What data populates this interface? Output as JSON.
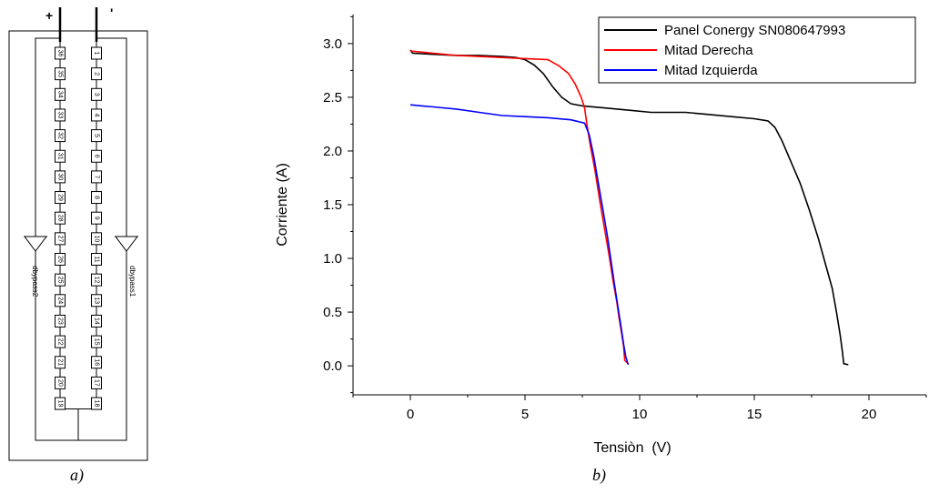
{
  "figure_a": {
    "terminal_plus": "+",
    "terminal_minus": "'",
    "left_cells": [
      "36",
      "35",
      "34",
      "33",
      "32",
      "31",
      "30",
      "29",
      "28",
      "27",
      "26",
      "25",
      "24",
      "23",
      "22",
      "21",
      "20",
      "19"
    ],
    "right_cells": [
      "1",
      "2",
      "3",
      "4",
      "5",
      "6",
      "7",
      "8",
      "9",
      "10",
      "11",
      "12",
      "13",
      "14",
      "15",
      "16",
      "17",
      "18"
    ],
    "diode_left_label": "dbypass2",
    "diode_right_label": "dbypass1",
    "caption": "a)"
  },
  "figure_b": {
    "caption": "b)"
  },
  "chart_data": {
    "type": "line",
    "xlabel": "Tensiòn  (V)",
    "ylabel": "Corriente (A)",
    "xlim": [
      -2.5,
      22.5
    ],
    "ylim": [
      -0.27,
      3.27
    ],
    "xticks": [
      0,
      5,
      10,
      15,
      20
    ],
    "yticks": [
      0.0,
      0.5,
      1.0,
      1.5,
      2.0,
      2.5,
      3.0
    ],
    "xtick_labels": [
      "0",
      "5",
      "10",
      "15",
      "20"
    ],
    "ytick_labels": [
      "0.0",
      "0.5",
      "1.0",
      "1.5",
      "2.0",
      "2.5",
      "3.0"
    ],
    "grid": false,
    "legend_position": "top-right",
    "series": [
      {
        "name": "Panel Conergy SN080647993",
        "color": "#000000",
        "points": [
          [
            0.0,
            2.94
          ],
          [
            0.1,
            2.91
          ],
          [
            1.0,
            2.9
          ],
          [
            2.0,
            2.89
          ],
          [
            3.0,
            2.89
          ],
          [
            4.0,
            2.88
          ],
          [
            4.6,
            2.87
          ],
          [
            5.0,
            2.85
          ],
          [
            5.4,
            2.8
          ],
          [
            5.8,
            2.72
          ],
          [
            6.2,
            2.6
          ],
          [
            6.6,
            2.5
          ],
          [
            7.0,
            2.44
          ],
          [
            7.5,
            2.42
          ],
          [
            8.5,
            2.4
          ],
          [
            9.5,
            2.38
          ],
          [
            10.5,
            2.36
          ],
          [
            12.0,
            2.36
          ],
          [
            13.0,
            2.34
          ],
          [
            14.0,
            2.32
          ],
          [
            15.0,
            2.3
          ],
          [
            15.6,
            2.28
          ],
          [
            15.9,
            2.22
          ],
          [
            16.2,
            2.1
          ],
          [
            16.6,
            1.9
          ],
          [
            17.0,
            1.7
          ],
          [
            17.4,
            1.45
          ],
          [
            17.8,
            1.18
          ],
          [
            18.1,
            0.95
          ],
          [
            18.4,
            0.72
          ],
          [
            18.6,
            0.48
          ],
          [
            18.75,
            0.28
          ],
          [
            18.85,
            0.12
          ],
          [
            18.9,
            0.02
          ],
          [
            19.1,
            0.01
          ]
        ]
      },
      {
        "name": "Mitad Derecha",
        "color": "#ff0000",
        "points": [
          [
            0.0,
            2.93
          ],
          [
            1.0,
            2.91
          ],
          [
            2.0,
            2.89
          ],
          [
            3.0,
            2.88
          ],
          [
            4.0,
            2.87
          ],
          [
            5.0,
            2.86
          ],
          [
            6.0,
            2.85
          ],
          [
            6.5,
            2.79
          ],
          [
            6.9,
            2.72
          ],
          [
            7.2,
            2.62
          ],
          [
            7.45,
            2.5
          ],
          [
            7.6,
            2.4
          ],
          [
            7.7,
            2.25
          ],
          [
            7.85,
            2.05
          ],
          [
            8.05,
            1.82
          ],
          [
            8.25,
            1.55
          ],
          [
            8.45,
            1.3
          ],
          [
            8.65,
            1.05
          ],
          [
            8.85,
            0.78
          ],
          [
            9.0,
            0.6
          ],
          [
            9.1,
            0.45
          ],
          [
            9.2,
            0.32
          ],
          [
            9.3,
            0.18
          ],
          [
            9.35,
            0.05
          ],
          [
            9.5,
            0.02
          ]
        ]
      },
      {
        "name": "Mitad Izquierda",
        "color": "#0000ff",
        "points": [
          [
            0.0,
            2.43
          ],
          [
            0.5,
            2.42
          ],
          [
            1.0,
            2.41
          ],
          [
            2.0,
            2.39
          ],
          [
            3.0,
            2.36
          ],
          [
            4.0,
            2.33
          ],
          [
            5.0,
            2.32
          ],
          [
            6.0,
            2.31
          ],
          [
            7.0,
            2.29
          ],
          [
            7.6,
            2.26
          ],
          [
            7.8,
            2.15
          ],
          [
            8.0,
            1.95
          ],
          [
            8.2,
            1.7
          ],
          [
            8.4,
            1.45
          ],
          [
            8.6,
            1.2
          ],
          [
            8.75,
            0.98
          ],
          [
            8.9,
            0.76
          ],
          [
            9.05,
            0.55
          ],
          [
            9.2,
            0.35
          ],
          [
            9.3,
            0.2
          ],
          [
            9.4,
            0.08
          ],
          [
            9.5,
            0.01
          ]
        ]
      }
    ]
  }
}
